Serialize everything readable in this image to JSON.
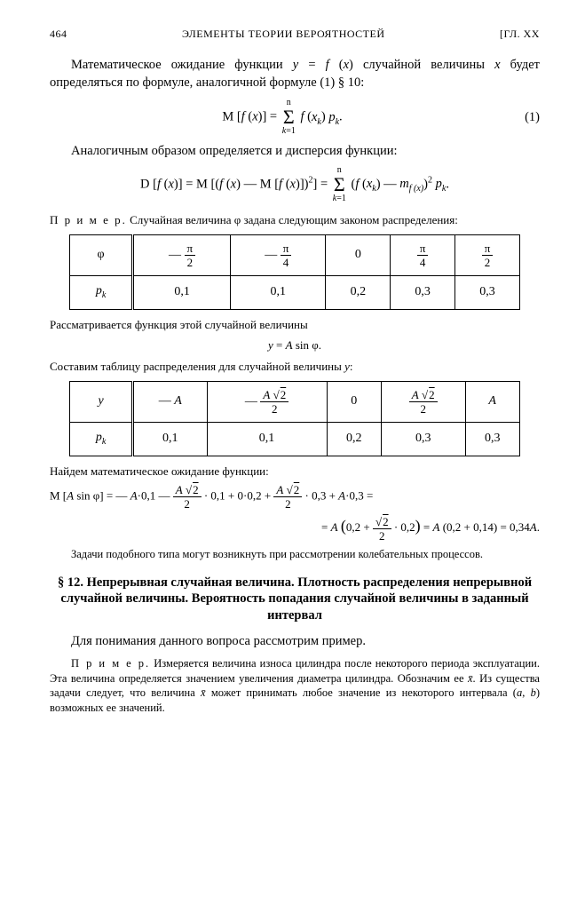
{
  "header": {
    "page_num": "464",
    "running_title": "ЭЛЕМЕНТЫ ТЕОРИИ ВЕРОЯТНОСТЕЙ",
    "chapter": "[ГЛ. XX"
  },
  "para1": "Математическое ожидание функции y = f (x) случайной величины x будет определяться по формуле, аналогичной формуле (1) § 10:",
  "eq1": {
    "lhs": "M [f (x)] =",
    "sum_top": "n",
    "sum_bot": "k=1",
    "rhs": " f (x_k) p_k.",
    "num": "(1)"
  },
  "para2": "Аналогичным образом определяется и дисперсия функции:",
  "eq2": {
    "lhs": "D [f (x)] = M [(f (x) — M [f (x)])²] =",
    "sum_top": "n",
    "sum_bot": "k=1",
    "rhs": " (f (x_k) — m_f (x))² p_k."
  },
  "example_label": "П р и м е р.",
  "para3": "Случайная величина φ задана следующим законом распределения:",
  "table1": {
    "row1_label": "φ",
    "row1_vals": [
      "−π/2",
      "−π/4",
      "0",
      "π/4",
      "π/2"
    ],
    "row2_label": "p_k",
    "row2_vals": [
      "0,1",
      "0,1",
      "0,2",
      "0,3",
      "0,3"
    ]
  },
  "para4": "Рассматривается функция этой случайной величины",
  "eq3": "y = A sin φ.",
  "para5": "Составим таблицу распределения для случайной величины y:",
  "table2": {
    "row1_label": "y",
    "row1_vals": [
      "−A",
      "−A√2/2",
      "0",
      "A√2/2",
      "A"
    ],
    "row2_label": "p_k",
    "row2_vals": [
      "0,1",
      "0,1",
      "0,2",
      "0,3",
      "0,3"
    ]
  },
  "para6": "Найдем математическое ожидание функции:",
  "eq4_line1": "M [A sin φ] = — A·0,1 — (A√2/2)·0,1 + 0·0,2 + (A√2/2)·0,3 + A·0,3 =",
  "eq4_line2": "= A (0,2 + (√2/2)·0,2) = A (0,2 + 0,14) = 0,34A.",
  "para7": "Задачи подобного типа могут возникнуть при рассмотрении колебательных процессов.",
  "section": "§ 12. Непрерывная случайная величина. Плотность распределения непрерывной случайной величины. Вероятность попадания случайной величины в заданный интервал",
  "para8": "Для понимания данного вопроса рассмотрим пример.",
  "para9": "Измеряется величина износа цилиндра после некоторого периода эксплуатации. Эта величина определяется значением увеличения диаметра цилиндра. Обозначим ее x̄. Из существа задачи следует, что величина x̄ может принимать любое значение из некоторого интервала (a, b) возможных ее значений."
}
